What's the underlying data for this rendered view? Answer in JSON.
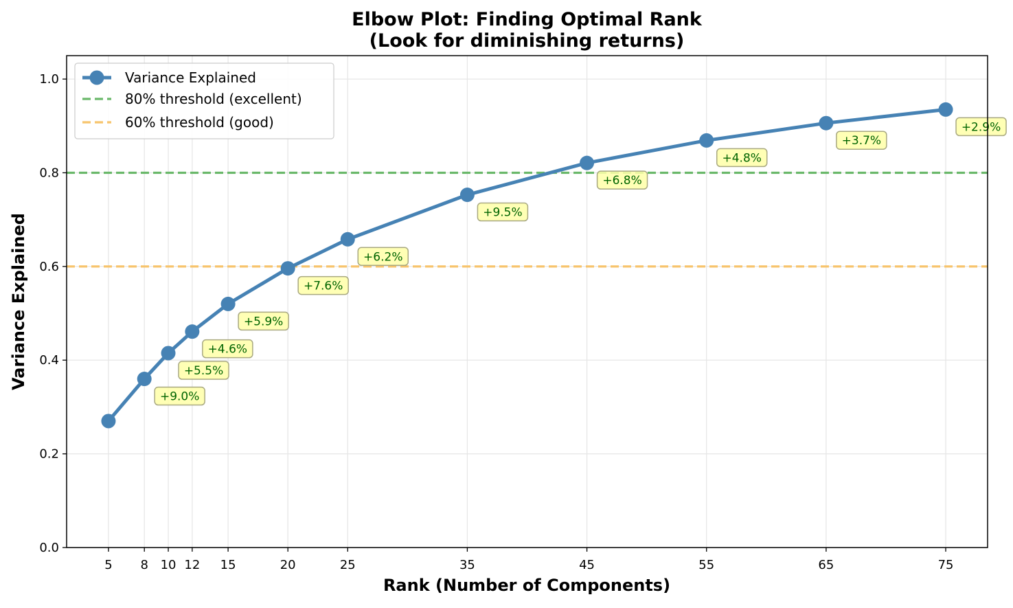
{
  "chart_data": {
    "type": "line",
    "title": "Elbow Plot: Finding Optimal Rank",
    "subtitle": "(Look for diminishing returns)",
    "xlabel": "Rank (Number of Components)",
    "ylabel": "Variance Explained",
    "xlim": [
      1.5,
      78.5
    ],
    "ylim": [
      0.0,
      1.05
    ],
    "x_ticks": [
      5,
      8,
      10,
      12,
      15,
      20,
      25,
      35,
      45,
      55,
      65,
      75
    ],
    "y_ticks": [
      0.0,
      0.2,
      0.4,
      0.6,
      0.8,
      1.0
    ],
    "y_tick_labels": [
      "0.0",
      "0.2",
      "0.4",
      "0.6",
      "0.8",
      "1.0"
    ],
    "grid": true,
    "legend_position": "top-left",
    "series": [
      {
        "name": "Variance Explained",
        "color": "#4682b4",
        "marker": "circle",
        "x": [
          5,
          8,
          10,
          12,
          15,
          20,
          25,
          35,
          45,
          55,
          65,
          75
        ],
        "y": [
          0.27,
          0.36,
          0.415,
          0.461,
          0.52,
          0.596,
          0.658,
          0.753,
          0.821,
          0.869,
          0.906,
          0.935
        ]
      }
    ],
    "reference_lines": [
      {
        "name": "80% threshold (excellent)",
        "y": 0.8,
        "color": "#6ab86a",
        "style": "dashed"
      },
      {
        "name": "60% threshold (good)",
        "y": 0.6,
        "color": "#f7c46c",
        "style": "dashed"
      }
    ],
    "annotations": [
      {
        "x": 8,
        "y": 0.36,
        "text": "+9.0%"
      },
      {
        "x": 10,
        "y": 0.415,
        "text": "+5.5%"
      },
      {
        "x": 12,
        "y": 0.461,
        "text": "+4.6%"
      },
      {
        "x": 15,
        "y": 0.52,
        "text": "+5.9%"
      },
      {
        "x": 20,
        "y": 0.596,
        "text": "+7.6%"
      },
      {
        "x": 25,
        "y": 0.658,
        "text": "+6.2%"
      },
      {
        "x": 35,
        "y": 0.753,
        "text": "+9.5%"
      },
      {
        "x": 45,
        "y": 0.821,
        "text": "+6.8%"
      },
      {
        "x": 55,
        "y": 0.869,
        "text": "+4.8%"
      },
      {
        "x": 65,
        "y": 0.906,
        "text": "+3.7%"
      },
      {
        "x": 75,
        "y": 0.935,
        "text": "+2.9%"
      }
    ],
    "annotation_style": {
      "fill": "#ffffa8",
      "stroke": "#a8a880",
      "text_color": "#006400"
    }
  }
}
